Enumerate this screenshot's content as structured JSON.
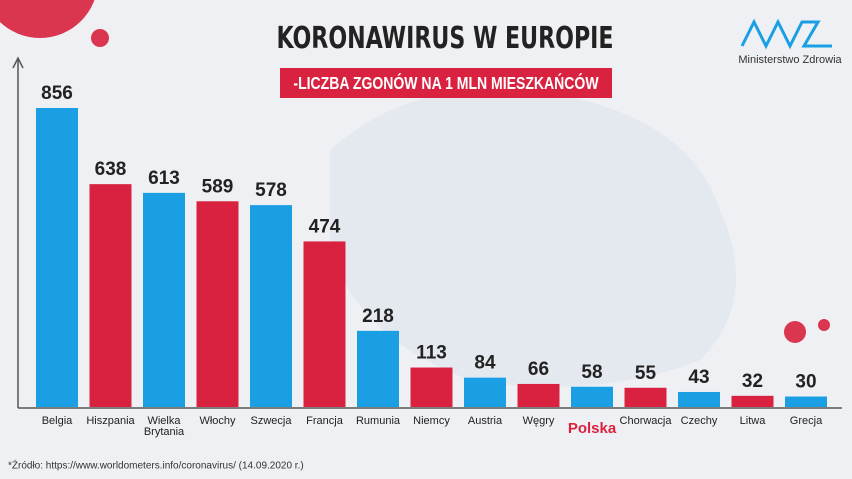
{
  "chart_data": {
    "type": "bar",
    "title": "KORONAWIRUS W EUROPIE",
    "subtitle": "-LICZBA ZGONÓW NA 1 MLN MIESZKAŃCÓW",
    "logo_text": "Ministerstwo Zdrowia",
    "source": "*Źródło: https://www.worldometers.info/coronavirus/ (14.09.2020 r.)",
    "categories": [
      "Belgia",
      "Hiszpania",
      "Wielka Brytania",
      "Włochy",
      "Szwecja",
      "Francja",
      "Rumunia",
      "Niemcy",
      "Austria",
      "Węgry",
      "Polska",
      "Chorwacja",
      "Czechy",
      "Litwa",
      "Grecja"
    ],
    "values": [
      856,
      638,
      613,
      589,
      578,
      474,
      218,
      113,
      84,
      66,
      58,
      55,
      43,
      32,
      30
    ],
    "colors": [
      "#1a9fe5",
      "#d9223f",
      "#1a9fe5",
      "#d9223f",
      "#1a9fe5",
      "#d9223f",
      "#1a9fe5",
      "#d9223f",
      "#1a9fe5",
      "#d9223f",
      "#1a9fe5",
      "#d9223f",
      "#1a9fe5",
      "#d9223f",
      "#1a9fe5"
    ],
    "highlight_category": 10
  }
}
